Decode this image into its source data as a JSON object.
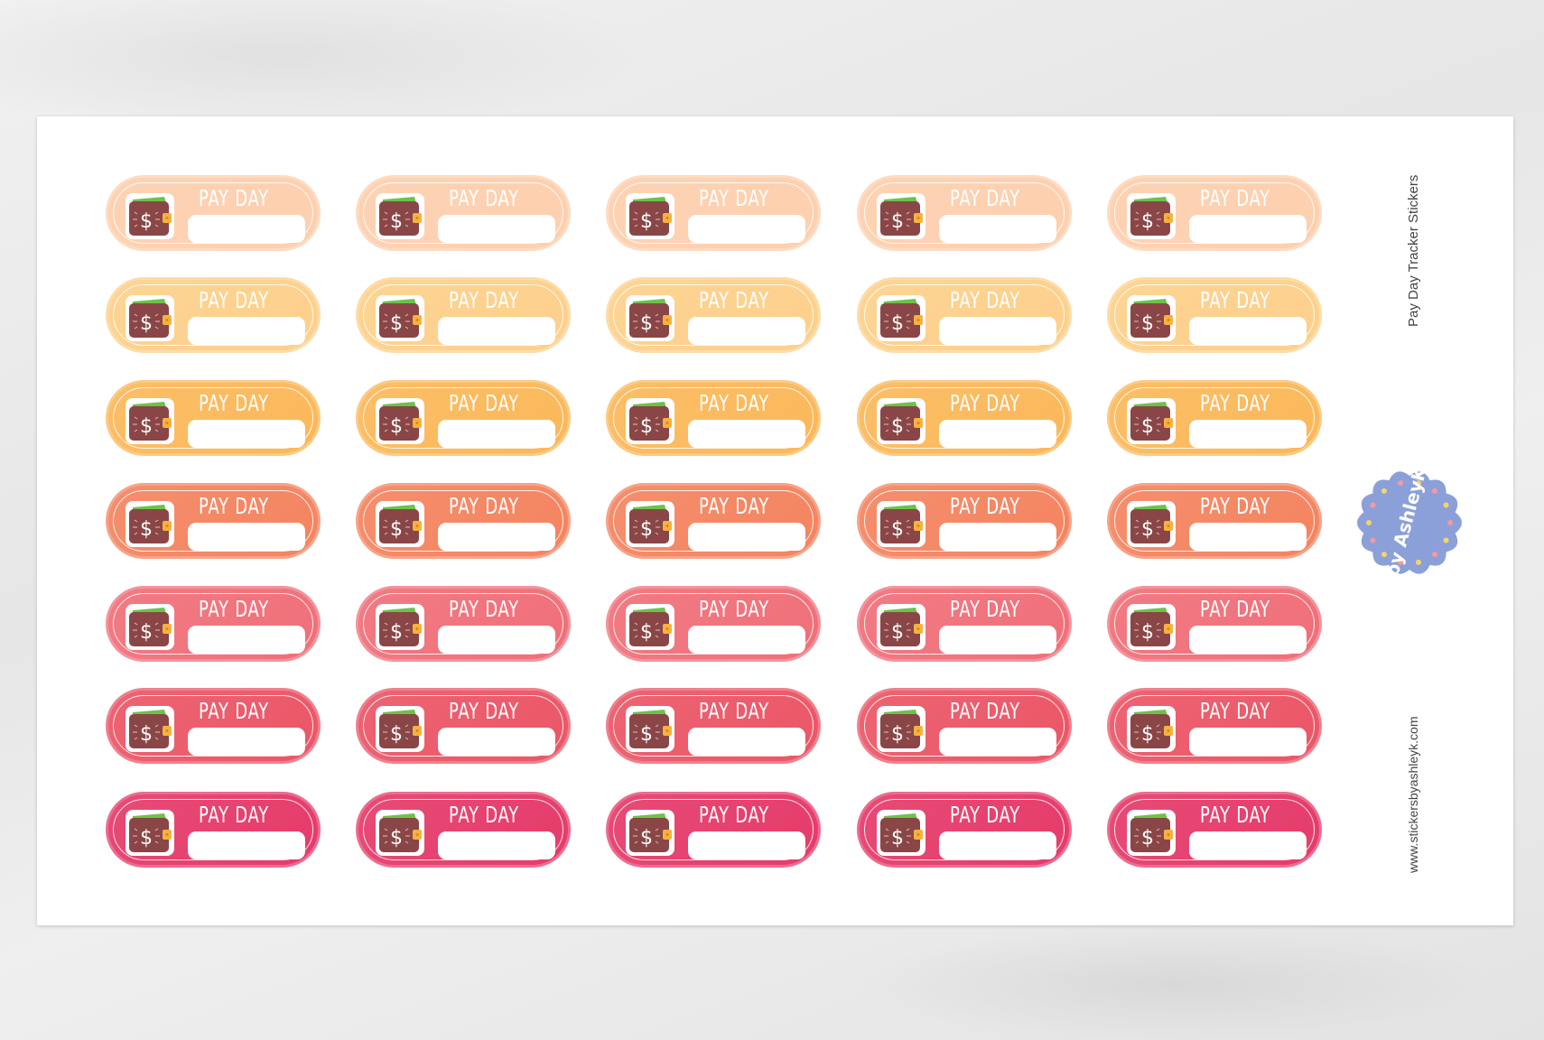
{
  "sheet": {
    "title": "Pay Day Tracker Stickers",
    "website": "www.stickersbyashleyk.com",
    "logo_text": "by AshleyK",
    "logo_color": "#8ba0d9"
  },
  "sticker": {
    "label": "PAY DAY",
    "icon": "wallet-dollar-icon",
    "wallet_color": "#8a4646",
    "cash_color": "#6cc24a",
    "clasp_color": "#f5b23f"
  },
  "columns": 5,
  "rows": [
    {
      "color": "#fdcfae"
    },
    {
      "color": "#fdd08b"
    },
    {
      "color": "#fbb85a"
    },
    {
      "color": "#f48460"
    },
    {
      "color": "#f06f79"
    },
    {
      "color": "#eb5667"
    },
    {
      "color": "#e53b6a"
    }
  ]
}
